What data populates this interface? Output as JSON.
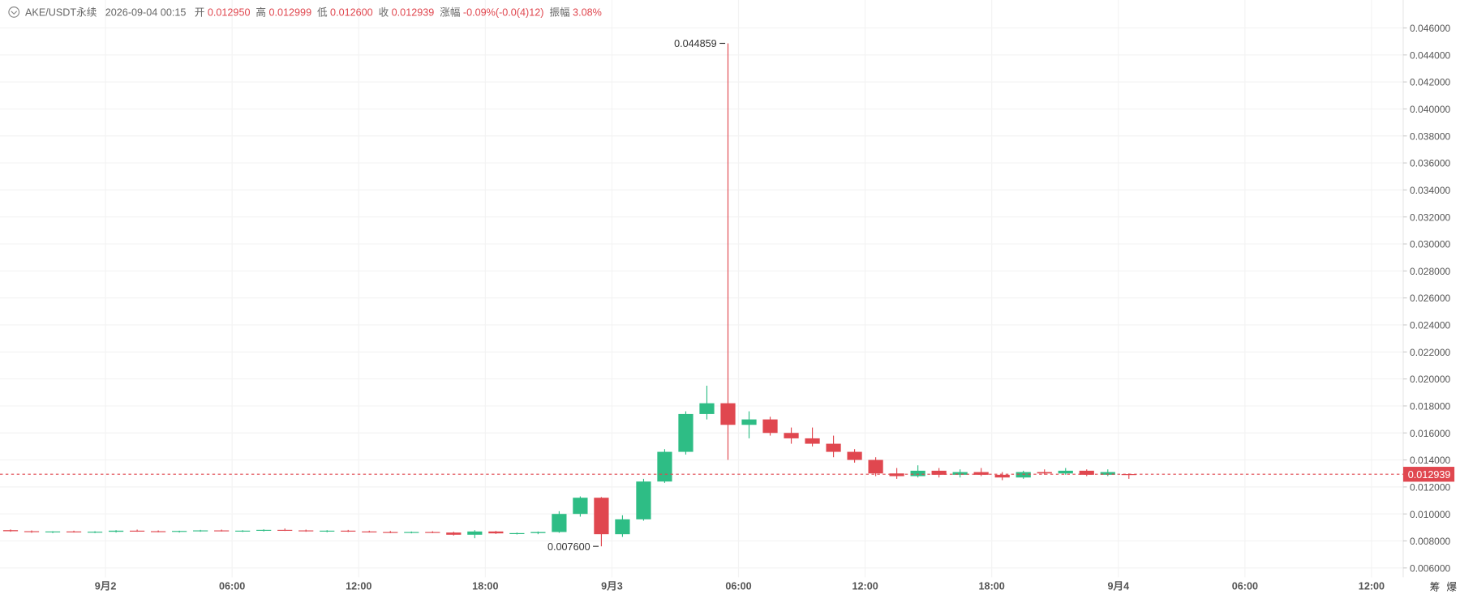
{
  "chart_data": {
    "type": "candlestick",
    "header": {
      "symbol": "AKE/USDT永续",
      "time": "2026-09-04 00:15",
      "fields": [
        {
          "label": "开",
          "value": "0.012950"
        },
        {
          "label": "高",
          "value": "0.012999"
        },
        {
          "label": "低",
          "value": "0.012600"
        },
        {
          "label": "收",
          "value": "0.012939"
        },
        {
          "label": "涨幅",
          "value": "-0.09%(-0.0(4)12)"
        },
        {
          "label": "振幅",
          "value": "3.08%"
        }
      ]
    },
    "x": [
      "2026-09-01 19:00",
      "2026-09-01 20:00",
      "2026-09-01 21:00",
      "2026-09-01 22:00",
      "2026-09-01 23:00",
      "2026-09-02 00:00",
      "2026-09-02 01:00",
      "2026-09-02 02:00",
      "2026-09-02 03:00",
      "2026-09-02 04:00",
      "2026-09-02 05:00",
      "2026-09-02 06:00",
      "2026-09-02 07:00",
      "2026-09-02 08:00",
      "2026-09-02 09:00",
      "2026-09-02 10:00",
      "2026-09-02 11:00",
      "2026-09-02 12:00",
      "2026-09-02 13:00",
      "2026-09-02 14:00",
      "2026-09-02 15:00",
      "2026-09-02 16:00",
      "2026-09-02 17:00",
      "2026-09-02 18:00",
      "2026-09-02 19:00",
      "2026-09-02 20:00",
      "2026-09-02 21:00",
      "2026-09-02 22:00",
      "2026-09-02 23:00",
      "2026-09-03 00:00",
      "2026-09-03 01:00",
      "2026-09-03 02:00",
      "2026-09-03 03:00",
      "2026-09-03 04:00",
      "2026-09-03 05:00",
      "2026-09-03 06:00",
      "2026-09-03 07:00",
      "2026-09-03 08:00",
      "2026-09-03 09:00",
      "2026-09-03 10:00",
      "2026-09-03 11:00",
      "2026-09-03 12:00",
      "2026-09-03 13:00",
      "2026-09-03 14:00",
      "2026-09-03 15:00",
      "2026-09-03 16:00",
      "2026-09-03 17:00",
      "2026-09-03 18:00",
      "2026-09-03 19:00",
      "2026-09-03 20:00",
      "2026-09-03 21:00",
      "2026-09-03 22:00",
      "2026-09-03 23:00",
      "2026-09-04 00:00"
    ],
    "open": [
      0.0088,
      0.00872,
      0.00866,
      0.0087,
      0.00864,
      0.00868,
      0.00876,
      0.00872,
      0.0087,
      0.00874,
      0.00878,
      0.00872,
      0.00876,
      0.00882,
      0.00878,
      0.00872,
      0.00876,
      0.0087,
      0.00866,
      0.00862,
      0.00866,
      0.00862,
      0.00846,
      0.0087,
      0.00856,
      0.00858,
      0.00866,
      0.01,
      0.0112,
      0.0085,
      0.0096,
      0.0124,
      0.0146,
      0.0174,
      0.0182,
      0.0166,
      0.017,
      0.016,
      0.0156,
      0.0152,
      0.0146,
      0.014,
      0.013,
      0.0128,
      0.0132,
      0.0129,
      0.0131,
      0.0129,
      0.0127,
      0.0131,
      0.013,
      0.0132,
      0.0129,
      0.01295
    ],
    "high": [
      0.00885,
      0.00878,
      0.00872,
      0.00876,
      0.00872,
      0.0088,
      0.00884,
      0.00878,
      0.00876,
      0.00882,
      0.00884,
      0.0088,
      0.00886,
      0.00892,
      0.00884,
      0.0088,
      0.00882,
      0.00876,
      0.00874,
      0.0087,
      0.00872,
      0.00868,
      0.0088,
      0.00874,
      0.00862,
      0.0087,
      0.0102,
      0.0113,
      0.01125,
      0.0099,
      0.0126,
      0.0148,
      0.0176,
      0.0195,
      0.044859,
      0.0176,
      0.0172,
      0.0164,
      0.0164,
      0.0158,
      0.0148,
      0.0142,
      0.0134,
      0.0136,
      0.0134,
      0.0133,
      0.0134,
      0.0131,
      0.0132,
      0.0133,
      0.0134,
      0.0133,
      0.0133,
      0.012999
    ],
    "low": [
      0.00868,
      0.0086,
      0.00858,
      0.00862,
      0.00858,
      0.00862,
      0.00868,
      0.00864,
      0.00862,
      0.00868,
      0.0087,
      0.00866,
      0.0087,
      0.00874,
      0.00868,
      0.00864,
      0.00866,
      0.00862,
      0.00858,
      0.00856,
      0.00858,
      0.0084,
      0.0082,
      0.00852,
      0.00848,
      0.0085,
      0.0086,
      0.0098,
      0.0076,
      0.0083,
      0.0095,
      0.0123,
      0.0144,
      0.017,
      0.014,
      0.0156,
      0.0158,
      0.0152,
      0.015,
      0.0142,
      0.0138,
      0.0128,
      0.0126,
      0.0127,
      0.0127,
      0.0127,
      0.0128,
      0.0125,
      0.0126,
      0.0129,
      0.0129,
      0.0128,
      0.0128,
      0.0126
    ],
    "close": [
      0.00872,
      0.00866,
      0.0087,
      0.00864,
      0.00868,
      0.00876,
      0.00872,
      0.0087,
      0.00874,
      0.00878,
      0.00872,
      0.00876,
      0.00882,
      0.00878,
      0.00872,
      0.00876,
      0.0087,
      0.00866,
      0.00862,
      0.00866,
      0.00862,
      0.00846,
      0.0087,
      0.00856,
      0.00858,
      0.00866,
      0.01,
      0.0112,
      0.0085,
      0.0096,
      0.0124,
      0.0146,
      0.0174,
      0.0182,
      0.0166,
      0.017,
      0.016,
      0.0156,
      0.0152,
      0.0146,
      0.014,
      0.013,
      0.0128,
      0.0132,
      0.0129,
      0.0131,
      0.0129,
      0.0127,
      0.0131,
      0.013,
      0.0132,
      0.0129,
      0.0131,
      0.012939
    ],
    "up_color": "#2ebd85",
    "down_color": "#e0474f",
    "xlim": [
      "2026-09-01 19:00",
      "2026-09-04 13:30"
    ],
    "xticks": [
      {
        "value": "2026-09-02 00:00",
        "label": "9月2"
      },
      {
        "value": "2026-09-02 06:00",
        "label": "06:00"
      },
      {
        "value": "2026-09-02 12:00",
        "label": "12:00"
      },
      {
        "value": "2026-09-02 18:00",
        "label": "18:00"
      },
      {
        "value": "2026-09-03 00:00",
        "label": "9月3"
      },
      {
        "value": "2026-09-03 06:00",
        "label": "06:00"
      },
      {
        "value": "2026-09-03 12:00",
        "label": "12:00"
      },
      {
        "value": "2026-09-03 18:00",
        "label": "18:00"
      },
      {
        "value": "2026-09-04 00:00",
        "label": "9月4"
      },
      {
        "value": "2026-09-04 06:00",
        "label": "06:00"
      },
      {
        "value": "2026-09-04 12:00",
        "label": "12:00"
      }
    ],
    "ylim": [
      0.00531,
      0.04807
    ],
    "yticks": [
      {
        "value": 0.006,
        "label": "0.006000"
      },
      {
        "value": 0.008,
        "label": "0.008000"
      },
      {
        "value": 0.01,
        "label": "0.010000"
      },
      {
        "value": 0.012,
        "label": "0.012000"
      },
      {
        "value": 0.014,
        "label": "0.014000"
      },
      {
        "value": 0.016,
        "label": "0.016000"
      },
      {
        "value": 0.018,
        "label": "0.018000"
      },
      {
        "value": 0.02,
        "label": "0.020000"
      },
      {
        "value": 0.022,
        "label": "0.022000"
      },
      {
        "value": 0.024,
        "label": "0.024000"
      },
      {
        "value": 0.026,
        "label": "0.026000"
      },
      {
        "value": 0.028,
        "label": "0.028000"
      },
      {
        "value": 0.03,
        "label": "0.030000"
      },
      {
        "value": 0.032,
        "label": "0.032000"
      },
      {
        "value": 0.034,
        "label": "0.034000"
      },
      {
        "value": 0.036,
        "label": "0.036000"
      },
      {
        "value": 0.038,
        "label": "0.038000"
      },
      {
        "value": 0.04,
        "label": "0.040000"
      },
      {
        "value": 0.042,
        "label": "0.042000"
      },
      {
        "value": 0.044,
        "label": "0.044000"
      },
      {
        "value": 0.046,
        "label": "0.046000"
      }
    ],
    "grid": true,
    "last_price": 0.012939,
    "annotations": [
      {
        "value": 0.044859,
        "label": "0.044859",
        "index": 34
      },
      {
        "value": 0.0076,
        "label": "0.007600",
        "index": 28
      }
    ],
    "side_buttons": [
      "筹",
      "爆"
    ]
  }
}
